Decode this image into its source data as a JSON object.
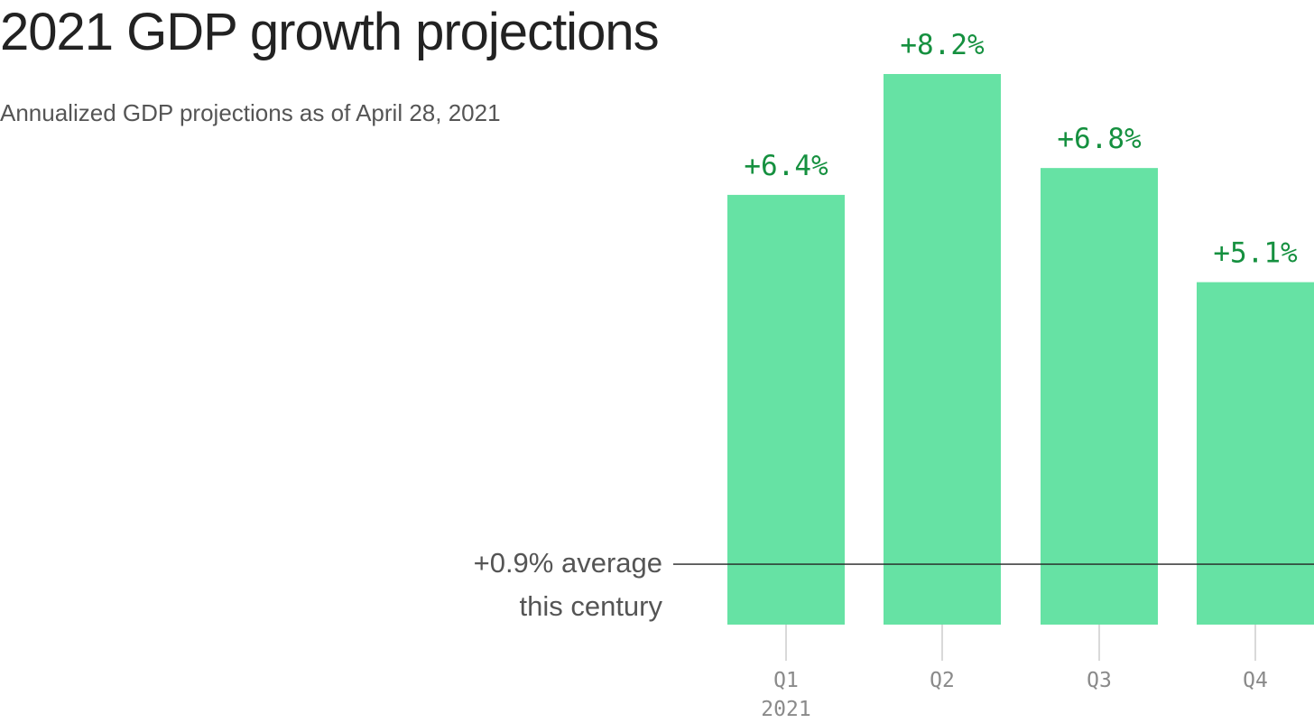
{
  "chart_data": {
    "type": "bar",
    "title": "2021 GDP growth projections",
    "subtitle": "Annualized GDP projections as of April 28, 2021",
    "categories": [
      "Q1",
      "Q2",
      "Q3",
      "Q4"
    ],
    "category_sublabels": [
      "2021",
      "",
      "",
      ""
    ],
    "values": [
      6.4,
      8.2,
      6.8,
      5.1
    ],
    "value_labels": [
      "+6.4%",
      "+8.2%",
      "+6.8%",
      "+5.1%"
    ],
    "ylim": [
      0,
      8.2
    ],
    "grid": false,
    "reference_line": {
      "value": 0.9,
      "label_line1": "+0.9% average",
      "label_line2": "this century"
    },
    "colors": {
      "bar": "#66e2a4",
      "value_label": "#15903f",
      "reference_line": "#222222",
      "tick": "#cccccc"
    }
  }
}
